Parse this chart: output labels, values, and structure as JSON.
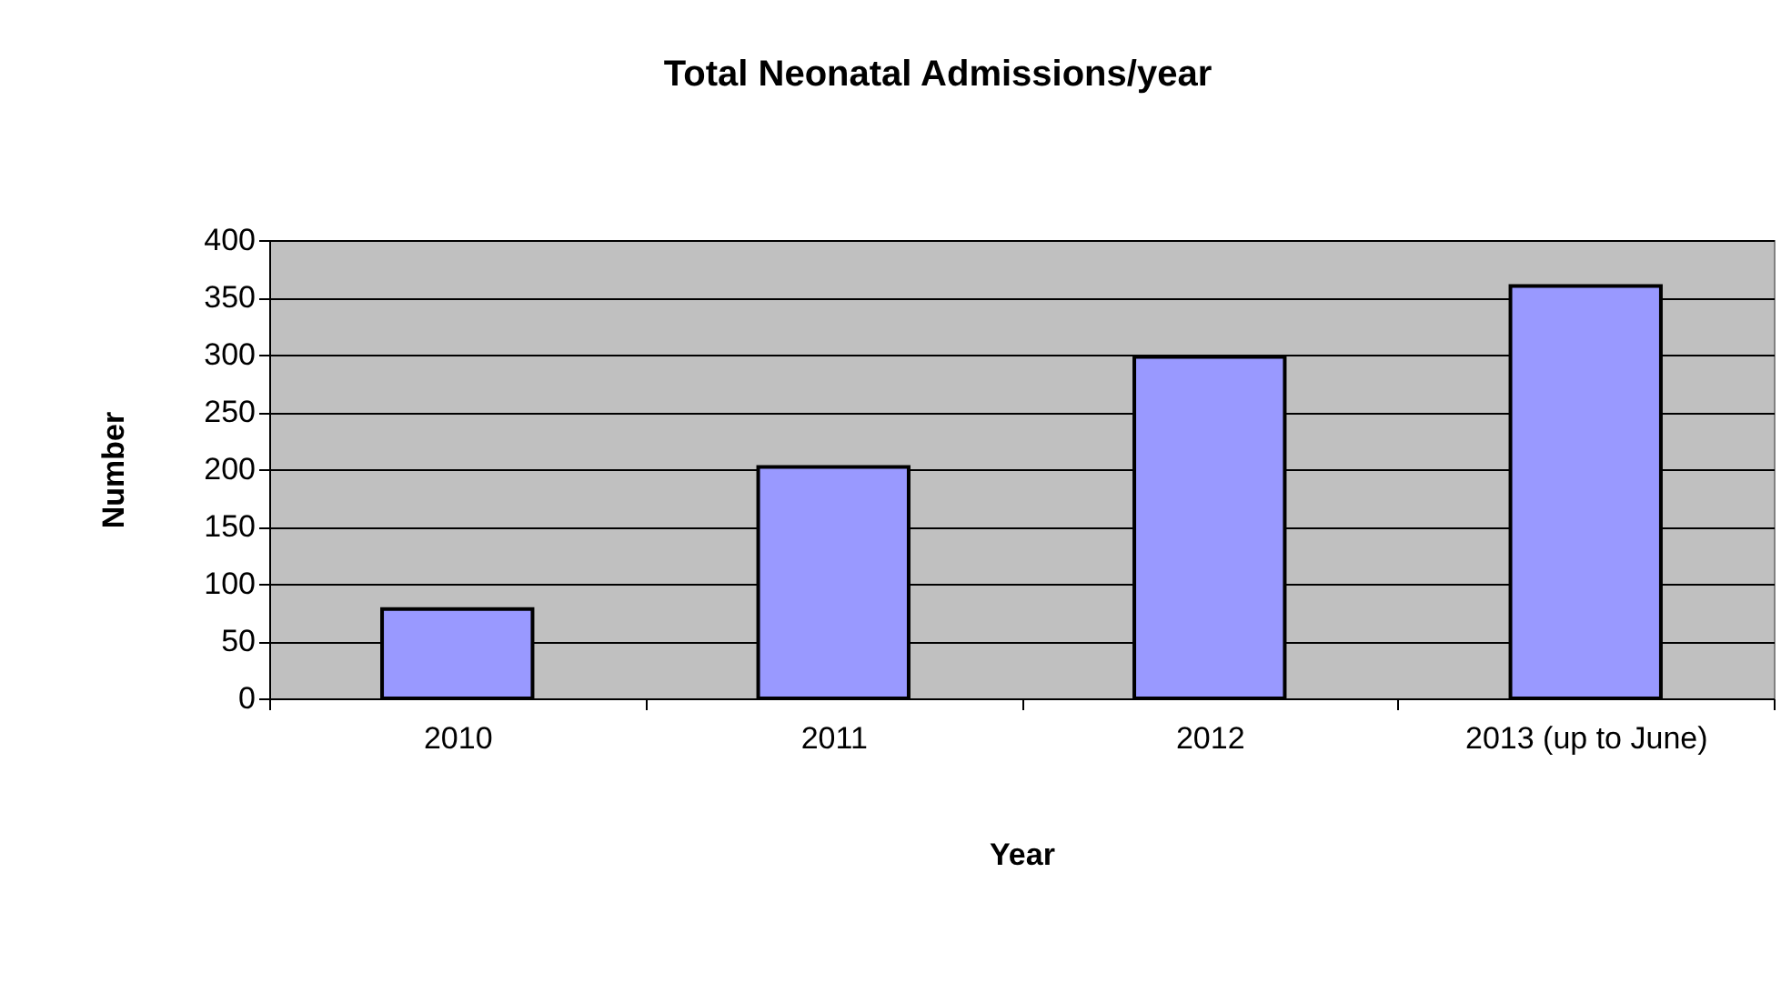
{
  "chart_data": {
    "type": "bar",
    "title": "Total Neonatal Admissions/year",
    "xlabel": "Year",
    "ylabel": "Number",
    "categories": [
      "2010",
      "2011",
      "2012",
      "2013 (up to June)"
    ],
    "series": [
      {
        "color": "#9999ff",
        "values": [
          78,
          202,
          298,
          360
        ]
      }
    ],
    "ylim": [
      0,
      400
    ],
    "yticks": [
      0,
      50,
      100,
      150,
      200,
      250,
      300,
      350,
      400
    ],
    "grid": "y"
  }
}
